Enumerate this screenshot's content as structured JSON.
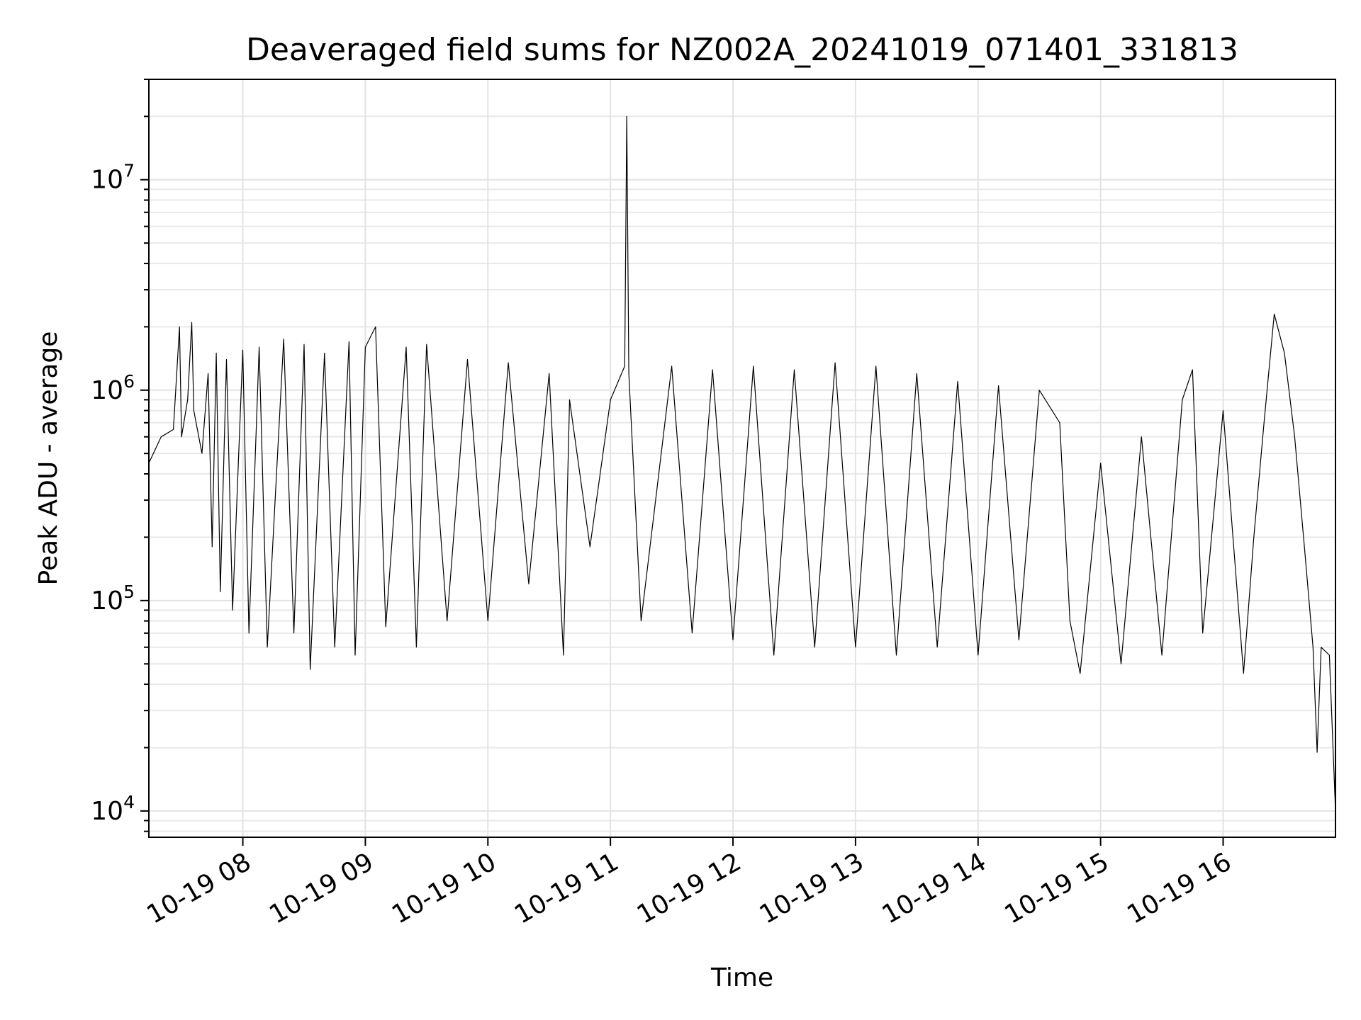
{
  "chart_data": {
    "type": "line",
    "title": "Deaveraged field sums for NZ002A_20241019_071401_331813",
    "xlabel": "Time",
    "ylabel": "Peak ADU - average",
    "yscale": "log",
    "xlim": [
      "2024-10-19 07:14",
      "2024-10-19 16:55"
    ],
    "ylim": [
      7500,
      30000000
    ],
    "grid": true,
    "colors": {
      "line": "#000000",
      "grid": "#e3e3e3",
      "frame": "#000000"
    },
    "x_ticks": [
      {
        "value": "2024-10-19 08:00",
        "label": "10-19 08"
      },
      {
        "value": "2024-10-19 09:00",
        "label": "10-19 09"
      },
      {
        "value": "2024-10-19 10:00",
        "label": "10-19 10"
      },
      {
        "value": "2024-10-19 11:00",
        "label": "10-19 11"
      },
      {
        "value": "2024-10-19 12:00",
        "label": "10-19 12"
      },
      {
        "value": "2024-10-19 13:00",
        "label": "10-19 13"
      },
      {
        "value": "2024-10-19 14:00",
        "label": "10-19 14"
      },
      {
        "value": "2024-10-19 15:00",
        "label": "10-19 15"
      },
      {
        "value": "2024-10-19 16:00",
        "label": "10-19 16"
      }
    ],
    "y_ticks": [
      {
        "value": 10000,
        "base": "10",
        "exp": "4"
      },
      {
        "value": 100000,
        "base": "10",
        "exp": "5"
      },
      {
        "value": 1000000,
        "base": "10",
        "exp": "6"
      },
      {
        "value": 10000000,
        "base": "10",
        "exp": "7"
      }
    ],
    "series": [
      {
        "points": [
          [
            "2024-10-19 07:14",
            450000
          ],
          [
            "2024-10-19 07:20",
            600000
          ],
          [
            "2024-10-19 07:26",
            650000
          ],
          [
            "2024-10-19 07:29",
            2000000
          ],
          [
            "2024-10-19 07:30",
            600000
          ],
          [
            "2024-10-19 07:33",
            900000
          ],
          [
            "2024-10-19 07:35",
            2100000
          ],
          [
            "2024-10-19 07:36",
            800000
          ],
          [
            "2024-10-19 07:40",
            500000
          ],
          [
            "2024-10-19 07:43",
            1200000
          ],
          [
            "2024-10-19 07:45",
            180000
          ],
          [
            "2024-10-19 07:47",
            1500000
          ],
          [
            "2024-10-19 07:49",
            110000
          ],
          [
            "2024-10-19 07:52",
            1400000
          ],
          [
            "2024-10-19 07:55",
            90000
          ],
          [
            "2024-10-19 08:00",
            1550000
          ],
          [
            "2024-10-19 08:03",
            70000
          ],
          [
            "2024-10-19 08:08",
            1600000
          ],
          [
            "2024-10-19 08:12",
            60000
          ],
          [
            "2024-10-19 08:20",
            1750000
          ],
          [
            "2024-10-19 08:25",
            70000
          ],
          [
            "2024-10-19 08:30",
            1650000
          ],
          [
            "2024-10-19 08:33",
            47000
          ],
          [
            "2024-10-19 08:40",
            1500000
          ],
          [
            "2024-10-19 08:45",
            60000
          ],
          [
            "2024-10-19 08:52",
            1700000
          ],
          [
            "2024-10-19 08:55",
            55000
          ],
          [
            "2024-10-19 09:00",
            1600000
          ],
          [
            "2024-10-19 09:05",
            2000000
          ],
          [
            "2024-10-19 09:10",
            75000
          ],
          [
            "2024-10-19 09:20",
            1600000
          ],
          [
            "2024-10-19 09:25",
            60000
          ],
          [
            "2024-10-19 09:30",
            1650000
          ],
          [
            "2024-10-19 09:40",
            80000
          ],
          [
            "2024-10-19 09:50",
            1400000
          ],
          [
            "2024-10-19 10:00",
            80000
          ],
          [
            "2024-10-19 10:10",
            1350000
          ],
          [
            "2024-10-19 10:20",
            120000
          ],
          [
            "2024-10-19 10:30",
            1200000
          ],
          [
            "2024-10-19 10:37",
            55000
          ],
          [
            "2024-10-19 10:40",
            900000
          ],
          [
            "2024-10-19 10:50",
            180000
          ],
          [
            "2024-10-19 11:00",
            900000
          ],
          [
            "2024-10-19 11:07",
            1300000
          ],
          [
            "2024-10-19 11:08",
            20000000
          ],
          [
            "2024-10-19 11:09",
            1200000
          ],
          [
            "2024-10-19 11:15",
            80000
          ],
          [
            "2024-10-19 11:30",
            1300000
          ],
          [
            "2024-10-19 11:40",
            70000
          ],
          [
            "2024-10-19 11:50",
            1250000
          ],
          [
            "2024-10-19 12:00",
            65000
          ],
          [
            "2024-10-19 12:10",
            1300000
          ],
          [
            "2024-10-19 12:20",
            55000
          ],
          [
            "2024-10-19 12:30",
            1250000
          ],
          [
            "2024-10-19 12:40",
            60000
          ],
          [
            "2024-10-19 12:50",
            1350000
          ],
          [
            "2024-10-19 13:00",
            60000
          ],
          [
            "2024-10-19 13:10",
            1300000
          ],
          [
            "2024-10-19 13:20",
            55000
          ],
          [
            "2024-10-19 13:30",
            1200000
          ],
          [
            "2024-10-19 13:40",
            60000
          ],
          [
            "2024-10-19 13:50",
            1100000
          ],
          [
            "2024-10-19 14:00",
            55000
          ],
          [
            "2024-10-19 14:10",
            1050000
          ],
          [
            "2024-10-19 14:20",
            65000
          ],
          [
            "2024-10-19 14:30",
            1000000
          ],
          [
            "2024-10-19 14:40",
            700000
          ],
          [
            "2024-10-19 14:45",
            80000
          ],
          [
            "2024-10-19 14:50",
            45000
          ],
          [
            "2024-10-19 15:00",
            450000
          ],
          [
            "2024-10-19 15:10",
            50000
          ],
          [
            "2024-10-19 15:20",
            600000
          ],
          [
            "2024-10-19 15:30",
            55000
          ],
          [
            "2024-10-19 15:40",
            900000
          ],
          [
            "2024-10-19 15:45",
            1250000
          ],
          [
            "2024-10-19 15:50",
            70000
          ],
          [
            "2024-10-19 16:00",
            800000
          ],
          [
            "2024-10-19 16:10",
            45000
          ],
          [
            "2024-10-19 16:15",
            200000
          ],
          [
            "2024-10-19 16:20",
            700000
          ],
          [
            "2024-10-19 16:25",
            2300000
          ],
          [
            "2024-10-19 16:30",
            1500000
          ],
          [
            "2024-10-19 16:35",
            600000
          ],
          [
            "2024-10-19 16:40",
            170000
          ],
          [
            "2024-10-19 16:44",
            60000
          ],
          [
            "2024-10-19 16:46",
            19000
          ],
          [
            "2024-10-19 16:48",
            60000
          ],
          [
            "2024-10-19 16:52",
            55000
          ],
          [
            "2024-10-19 16:55",
            10000
          ]
        ]
      }
    ]
  }
}
